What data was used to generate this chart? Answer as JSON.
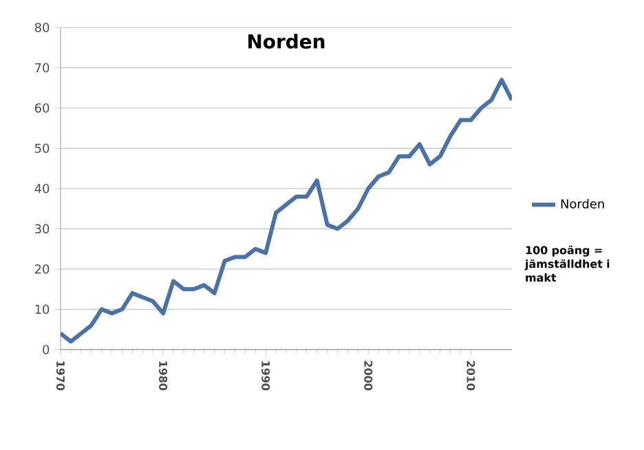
{
  "chart_data": {
    "type": "line",
    "title": "Norden",
    "x": [
      1970,
      1971,
      1972,
      1973,
      1974,
      1975,
      1976,
      1977,
      1978,
      1979,
      1980,
      1981,
      1982,
      1983,
      1984,
      1985,
      1986,
      1987,
      1988,
      1989,
      1990,
      1991,
      1992,
      1993,
      1994,
      1995,
      1996,
      1997,
      1998,
      1999,
      2000,
      2001,
      2002,
      2003,
      2004,
      2005,
      2006,
      2007,
      2008,
      2009,
      2010,
      2011,
      2012,
      2013,
      2014
    ],
    "series": [
      {
        "name": "Norden",
        "color": "#4a72a6",
        "values": [
          4,
          2,
          4,
          6,
          10,
          9,
          10,
          14,
          13,
          12,
          9,
          17,
          15,
          15,
          16,
          14,
          22,
          23,
          23,
          25,
          24,
          34,
          36,
          38,
          38,
          42,
          31,
          30,
          32,
          35,
          40,
          43,
          44,
          48,
          48,
          51,
          46,
          48,
          53,
          57,
          57,
          60,
          62,
          67,
          62
        ]
      }
    ],
    "xlim": [
      1970,
      2014
    ],
    "xticks": [
      1970,
      1980,
      1990,
      2000,
      2010
    ],
    "ylim": [
      0,
      80
    ],
    "yticks": [
      0,
      10,
      20,
      30,
      40,
      50,
      60,
      70,
      80
    ],
    "grid": "y",
    "legend": "right",
    "marker": "none",
    "line_style": "solid",
    "annotations": [
      "100 poäng = jämställdhet i makt"
    ]
  }
}
